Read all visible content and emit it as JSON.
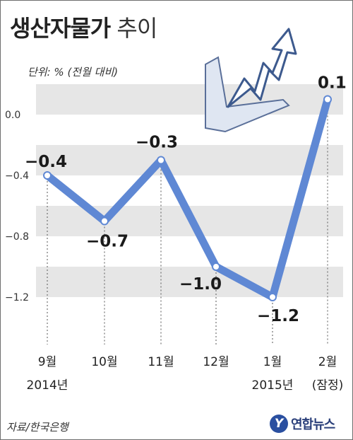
{
  "header": {
    "title_bold": "생산자물가",
    "title_light": "추이"
  },
  "unit_label": "단위: % (전월 대비)",
  "source": "자료/한국은행",
  "brand": {
    "logo_glyph": "Y",
    "name": "연합뉴스"
  },
  "colors": {
    "line": "#5f88d4",
    "band": "#e6e6e6",
    "marker": "#ffffff"
  },
  "chart_data": {
    "type": "line",
    "title": "생산자물가 추이",
    "unit": "단위: % (전월 대비)",
    "categories": [
      "9월\n2014년",
      "10월",
      "11월",
      "12월",
      "1월\n2015년",
      "2월\n(잠정)"
    ],
    "series": [
      {
        "values": [
          -0.4,
          -0.7,
          -0.3,
          -1.0,
          -1.2,
          0.1
        ]
      }
    ],
    "data_labels": [
      "−0.4",
      "−0.7",
      "−0.3",
      "−1.0",
      "−1.2",
      "0.1"
    ],
    "yticks": [
      0.0,
      -0.4,
      -0.8,
      -1.2
    ],
    "ytick_labels": [
      "0.0",
      "−0.4",
      "−0.8",
      "−1.2"
    ],
    "ylim": [
      -1.4,
      0.2
    ],
    "grid": "alternating horizontal bands",
    "legend": "none"
  }
}
